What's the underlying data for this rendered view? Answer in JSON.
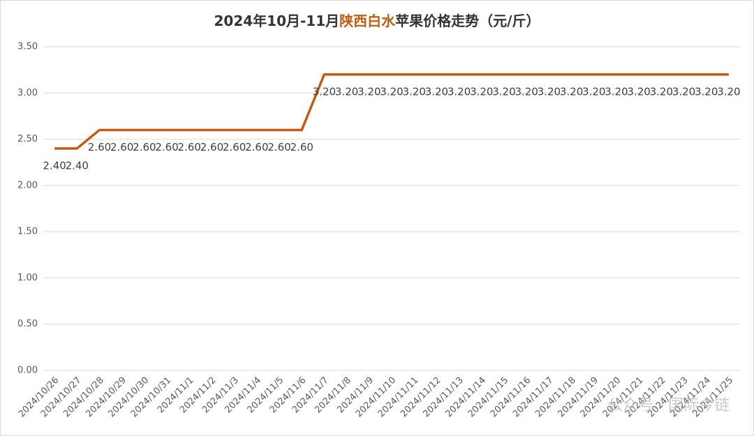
{
  "chart_data": {
    "type": "line",
    "title": [
      "2024年10月-11月",
      "陕西白水",
      "苹果价格走势（元/斤）"
    ],
    "categories": [
      "2024/10/26",
      "2024/10/27",
      "2024/10/28",
      "2024/10/29",
      "2024/10/30",
      "2024/10/31",
      "2024/11/1",
      "2024/11/2",
      "2024/11/3",
      "2024/11/4",
      "2024/11/5",
      "2024/11/6",
      "2024/11/7",
      "2024/11/8",
      "2024/11/9",
      "2024/11/10",
      "2024/11/11",
      "2024/11/12",
      "2024/11/13",
      "2024/11/14",
      "2024/11/15",
      "2024/11/16",
      "2024/11/17",
      "2024/11/18",
      "2024/11/19",
      "2024/11/20",
      "2024/11/21",
      "2024/11/22",
      "2024/11/23",
      "2024/11/24",
      "2024/11/25"
    ],
    "values": [
      2.4,
      2.4,
      2.6,
      2.6,
      2.6,
      2.6,
      2.6,
      2.6,
      2.6,
      2.6,
      2.6,
      2.6,
      3.2,
      3.2,
      3.2,
      3.2,
      3.2,
      3.2,
      3.2,
      3.2,
      3.2,
      3.2,
      3.2,
      3.2,
      3.2,
      3.2,
      3.2,
      3.2,
      3.2,
      3.2,
      3.2
    ],
    "value_labels": [
      "2.40",
      "2.40",
      "2.60",
      "2.60",
      "2.60",
      "2.60",
      "2.60",
      "2.60",
      "2.60",
      "2.60",
      "2.60",
      "2.60",
      "3.20",
      "3.20",
      "3.20",
      "3.20",
      "3.20",
      "3.20",
      "3.20",
      "3.20",
      "3.20",
      "3.20",
      "3.20",
      "3.20",
      "3.20",
      "3.20",
      "3.20",
      "3.20",
      "3.20",
      "3.20",
      "3.20"
    ],
    "color": "#c55a11",
    "title_highlight_color": "#c55a11",
    "ylim": [
      0,
      3.5
    ],
    "yticks": [
      {
        "value": 0,
        "label": "0.00"
      },
      {
        "value": 0.5,
        "label": "0.50"
      },
      {
        "value": 1,
        "label": "1.00"
      },
      {
        "value": 1.5,
        "label": "1.50"
      },
      {
        "value": 2,
        "label": "2.00"
      },
      {
        "value": 2.5,
        "label": "2.50"
      },
      {
        "value": 3,
        "label": "3.00"
      },
      {
        "value": 3.5,
        "label": "3.50"
      }
    ],
    "grid": true,
    "watermark": "公众号 · 国际今链"
  }
}
